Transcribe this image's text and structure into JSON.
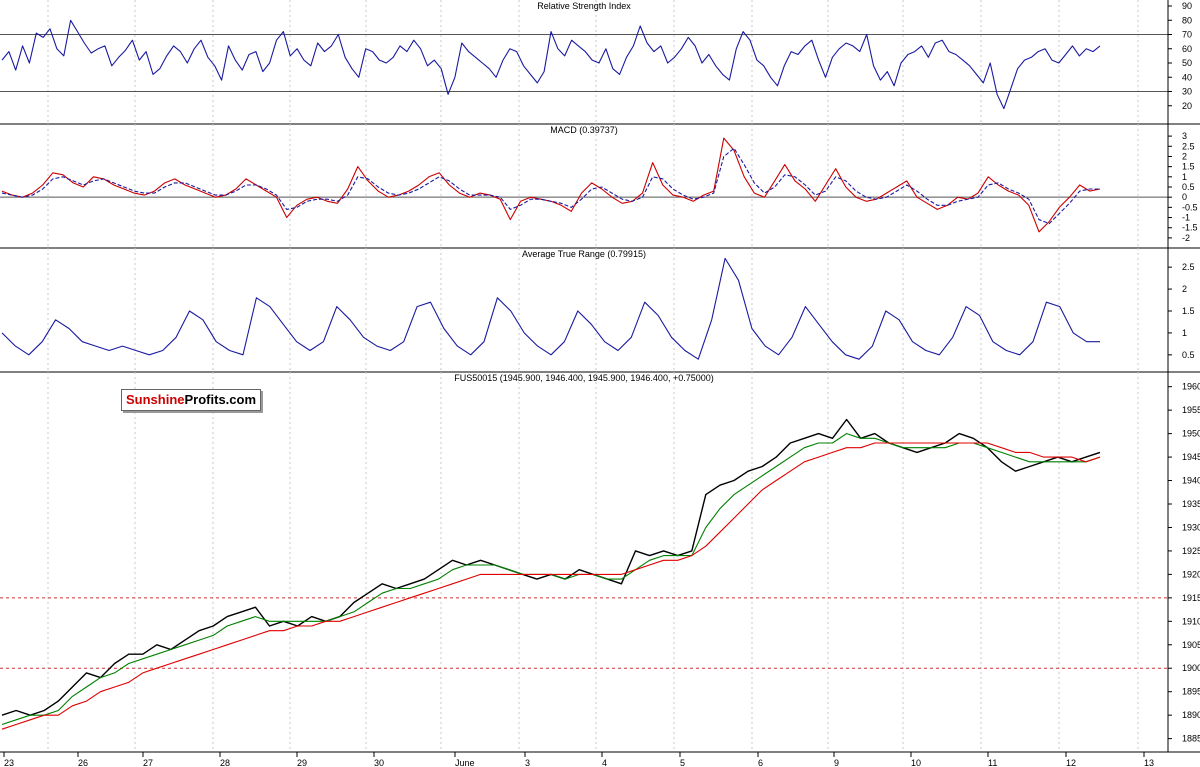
{
  "watermark": {
    "part1": "Sunshine",
    "part2": "Profits.com"
  },
  "chart_data": [
    {
      "type": "line",
      "title": "Relative Strength Index",
      "ylim": [
        10,
        90
      ],
      "yticks": [
        20,
        30,
        40,
        50,
        60,
        70,
        80,
        90
      ],
      "reference_lines": [
        30,
        70
      ],
      "series": [
        {
          "values": [
            52,
            58,
            45,
            62,
            50,
            71,
            68,
            74,
            60,
            55,
            80,
            72,
            64,
            57,
            60,
            62,
            48,
            54,
            59,
            66,
            52,
            58,
            42,
            46,
            55,
            62,
            58,
            50,
            60,
            66,
            54,
            48,
            38,
            62,
            52,
            45,
            56,
            58,
            44,
            50,
            66,
            72,
            55,
            60,
            52,
            48,
            64,
            58,
            62,
            70,
            54,
            46,
            40,
            60,
            58,
            52,
            50,
            54,
            62,
            58,
            66,
            60,
            48,
            52,
            46,
            28,
            40,
            64,
            58,
            54,
            50,
            46,
            40,
            52,
            60,
            58,
            48,
            42,
            36,
            44,
            72,
            60,
            55,
            66,
            62,
            58,
            52,
            50,
            60,
            46,
            42,
            54,
            62,
            76,
            64,
            58,
            62,
            50,
            54,
            60,
            68,
            62,
            50,
            56,
            48,
            42,
            38,
            60,
            72,
            66,
            52,
            48,
            40,
            34,
            48,
            58,
            56,
            62,
            66,
            52,
            40,
            54,
            60,
            64,
            62,
            58,
            70,
            48,
            38,
            44,
            34,
            50,
            56,
            58,
            62,
            54,
            64,
            66,
            58,
            56,
            52,
            48,
            42,
            36,
            50,
            28,
            18,
            32,
            46,
            52,
            54,
            58,
            60,
            52,
            50,
            56,
            62,
            55,
            60,
            58,
            62
          ]
        }
      ]
    },
    {
      "type": "line",
      "title": "MACD (0.39737)",
      "ylim": [
        -2.3,
        3.3
      ],
      "yticks": [
        -2.0,
        -1.5,
        -1.0,
        -0.5,
        0.0,
        0.5,
        1.0,
        1.5,
        2.0,
        2.5,
        3.0
      ],
      "reference_lines": [
        0
      ],
      "series": [
        {
          "values": [
            0.3,
            0.1,
            0.0,
            0.2,
            0.6,
            1.2,
            1.1,
            0.7,
            0.5,
            1.0,
            0.9,
            0.6,
            0.4,
            0.2,
            0.1,
            0.3,
            0.7,
            0.9,
            0.6,
            0.4,
            0.2,
            0.0,
            0.1,
            0.4,
            0.9,
            0.6,
            0.3,
            0.0,
            -1.0,
            -0.4,
            -0.1,
            0.0,
            -0.2,
            -0.3,
            0.4,
            1.5,
            0.8,
            0.3,
            0.0,
            0.1,
            0.3,
            0.6,
            1.0,
            1.2,
            0.6,
            0.2,
            0.0,
            0.2,
            0.1,
            -0.1,
            -1.1,
            -0.2,
            0.0,
            -0.1,
            -0.2,
            -0.4,
            -0.7,
            0.2,
            0.7,
            0.4,
            0.0,
            -0.3,
            -0.2,
            0.2,
            1.7,
            0.6,
            0.1,
            0.0,
            -0.2,
            0.1,
            0.3,
            2.9,
            2.3,
            1.0,
            0.2,
            0.0,
            0.8,
            1.6,
            0.8,
            0.4,
            -0.2,
            0.6,
            1.4,
            0.5,
            0.0,
            -0.2,
            -0.1,
            0.2,
            0.5,
            0.8,
            0.0,
            -0.3,
            -0.6,
            -0.4,
            0.0,
            -0.1,
            0.2,
            1.0,
            0.6,
            0.3,
            0.1,
            -0.4,
            -1.7,
            -1.2,
            -0.5,
            0.0,
            0.6,
            0.3,
            0.4
          ],
          "color": "#cc0000"
        },
        {
          "values": [
            0.2,
            0.1,
            0.0,
            0.1,
            0.4,
            0.9,
            1.0,
            0.8,
            0.6,
            0.8,
            0.9,
            0.7,
            0.5,
            0.3,
            0.2,
            0.2,
            0.5,
            0.7,
            0.7,
            0.5,
            0.3,
            0.1,
            0.1,
            0.3,
            0.6,
            0.6,
            0.4,
            0.1,
            -0.6,
            -0.5,
            -0.2,
            -0.1,
            -0.1,
            -0.2,
            0.1,
            1.0,
            0.9,
            0.5,
            0.2,
            0.1,
            0.2,
            0.4,
            0.7,
            1.0,
            0.8,
            0.4,
            0.1,
            0.1,
            0.1,
            0.0,
            -0.6,
            -0.4,
            -0.1,
            -0.1,
            -0.2,
            -0.3,
            -0.5,
            -0.1,
            0.4,
            0.5,
            0.2,
            -0.1,
            -0.2,
            0.0,
            1.0,
            0.9,
            0.4,
            0.1,
            -0.1,
            0.0,
            0.2,
            2.0,
            2.4,
            1.6,
            0.7,
            0.2,
            0.5,
            1.1,
            1.0,
            0.6,
            0.1,
            0.3,
            1.0,
            0.8,
            0.3,
            0.0,
            -0.1,
            0.0,
            0.3,
            0.6,
            0.3,
            -0.1,
            -0.4,
            -0.4,
            -0.2,
            -0.1,
            0.0,
            0.6,
            0.7,
            0.4,
            0.2,
            -0.1,
            -1.1,
            -1.3,
            -0.8,
            -0.3,
            0.3,
            0.4,
            0.4
          ],
          "color": "#1a1aa0",
          "dashed": true
        }
      ]
    },
    {
      "type": "line",
      "title": "Average True Range (0.79915)",
      "ylim": [
        0.2,
        2.8
      ],
      "yticks": [
        0.5,
        1.0,
        1.5,
        2.0,
        2.5
      ],
      "series": [
        {
          "values": [
            1.0,
            0.7,
            0.5,
            0.8,
            1.3,
            1.1,
            0.8,
            0.7,
            0.6,
            0.7,
            0.6,
            0.5,
            0.6,
            0.9,
            1.5,
            1.3,
            0.8,
            0.6,
            0.5,
            1.8,
            1.6,
            1.2,
            0.8,
            0.6,
            0.8,
            1.6,
            1.3,
            0.9,
            0.7,
            0.6,
            0.8,
            1.6,
            1.7,
            1.1,
            0.7,
            0.5,
            0.8,
            1.8,
            1.5,
            1.0,
            0.7,
            0.5,
            0.8,
            1.5,
            1.2,
            0.8,
            0.6,
            0.9,
            1.7,
            1.4,
            0.9,
            0.6,
            0.4,
            1.3,
            2.7,
            2.2,
            1.1,
            0.7,
            0.5,
            0.9,
            1.6,
            1.2,
            0.8,
            0.5,
            0.4,
            0.7,
            1.5,
            1.3,
            0.8,
            0.6,
            0.5,
            0.9,
            1.6,
            1.4,
            0.8,
            0.6,
            0.5,
            0.8,
            1.7,
            1.6,
            1.0,
            0.8,
            0.8
          ]
        }
      ]
    },
    {
      "type": "line",
      "title": "FUS50015 (1945.900, 1946.400, 1945.900, 1946.400, +0.75000)",
      "ylim": [
        1883,
        1961
      ],
      "yticks": [
        1885,
        1890,
        1895,
        1900,
        1905,
        1910,
        1915,
        1920,
        1925,
        1930,
        1935,
        1940,
        1945,
        1950,
        1955,
        1960
      ],
      "x_tick_labels": [
        "23",
        "26",
        "27",
        "28",
        "29",
        "30",
        "June",
        "3",
        "4",
        "5",
        "6",
        "9",
        "10",
        "11",
        "12",
        "13"
      ],
      "reference_lines": [
        1900,
        1915
      ],
      "series": [
        {
          "values": [
            1890,
            1891,
            1890,
            1891,
            1893,
            1896,
            1899,
            1898,
            1901,
            1903,
            1903,
            1905,
            1904,
            1906,
            1908,
            1909,
            1911,
            1912,
            1913,
            1909,
            1910,
            1909,
            1911,
            1910,
            1911,
            1914,
            1916,
            1918,
            1917,
            1918,
            1919,
            1921,
            1923,
            1922,
            1923,
            1922,
            1921,
            1920,
            1919,
            1920,
            1919,
            1921,
            1920,
            1919,
            1918,
            1925,
            1924,
            1925,
            1924,
            1925,
            1937,
            1939,
            1940,
            1942,
            1943,
            1945,
            1948,
            1949,
            1950,
            1949,
            1953,
            1949,
            1950,
            1948,
            1947,
            1946,
            1947,
            1948,
            1950,
            1949,
            1947,
            1944,
            1942,
            1943,
            1944,
            1945,
            1944,
            1945,
            1946
          ],
          "color": "#000000"
        },
        {
          "values": [
            1888,
            1889,
            1890,
            1890,
            1891,
            1894,
            1896,
            1898,
            1899,
            1901,
            1902,
            1903,
            1904,
            1905,
            1906,
            1907,
            1909,
            1910,
            1911,
            1910,
            1910,
            1910,
            1910,
            1910,
            1911,
            1912,
            1914,
            1916,
            1917,
            1917,
            1918,
            1919,
            1921,
            1922,
            1922,
            1922,
            1921,
            1920,
            1920,
            1920,
            1919,
            1920,
            1920,
            1919,
            1919,
            1921,
            1923,
            1924,
            1924,
            1924,
            1930,
            1934,
            1937,
            1939,
            1941,
            1943,
            1945,
            1947,
            1948,
            1948,
            1950,
            1949,
            1949,
            1948,
            1947,
            1947,
            1947,
            1947,
            1948,
            1948,
            1947,
            1946,
            1945,
            1944,
            1944,
            1944,
            1944,
            1944,
            1945
          ],
          "color": "#008000"
        },
        {
          "values": [
            1887,
            1888,
            1889,
            1890,
            1890,
            1892,
            1893,
            1895,
            1896,
            1897,
            1899,
            1900,
            1901,
            1902,
            1903,
            1904,
            1905,
            1906,
            1907,
            1908,
            1908,
            1909,
            1909,
            1910,
            1910,
            1911,
            1912,
            1913,
            1914,
            1915,
            1916,
            1917,
            1918,
            1919,
            1920,
            1920,
            1920,
            1920,
            1920,
            1920,
            1920,
            1920,
            1920,
            1920,
            1920,
            1921,
            1922,
            1923,
            1923,
            1924,
            1926,
            1929,
            1932,
            1935,
            1938,
            1940,
            1942,
            1944,
            1945,
            1946,
            1947,
            1947,
            1948,
            1948,
            1948,
            1948,
            1948,
            1948,
            1948,
            1948,
            1948,
            1947,
            1946,
            1946,
            1945,
            1945,
            1945,
            1944,
            1945
          ],
          "color": "#e00000"
        }
      ]
    }
  ]
}
